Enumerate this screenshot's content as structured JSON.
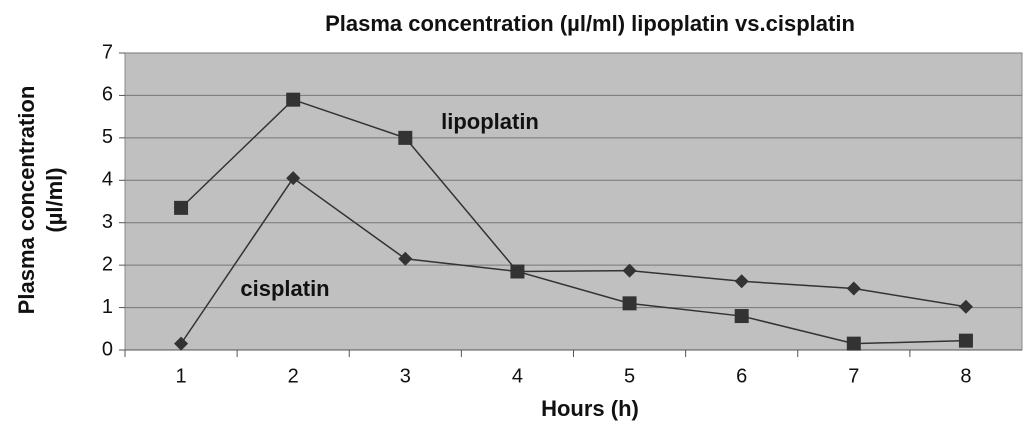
{
  "chart_data": {
    "type": "line",
    "title": "Plasma concentration (µl/ml) lipoplatin vs.cisplatin",
    "xlabel": "Hours (h)",
    "ylabel_lines": [
      "Plasma concentration",
      "(µl/ml)"
    ],
    "categories": [
      "1",
      "2",
      "3",
      "4",
      "5",
      "6",
      "7",
      "8"
    ],
    "series": [
      {
        "name": "lipoplatin",
        "marker": "square",
        "color": "#333333",
        "values": [
          3.35,
          5.9,
          5.0,
          1.85,
          1.1,
          0.8,
          0.15,
          0.22
        ]
      },
      {
        "name": "cisplatin",
        "marker": "diamond",
        "color": "#333333",
        "values": [
          0.15,
          4.05,
          2.15,
          1.85,
          1.87,
          1.62,
          1.45,
          1.02
        ]
      }
    ],
    "ylim": [
      0,
      7
    ],
    "yticks": [
      0,
      1,
      2,
      3,
      4,
      5,
      6,
      7
    ],
    "grid": true,
    "plot_background": "#c0c0c0"
  }
}
